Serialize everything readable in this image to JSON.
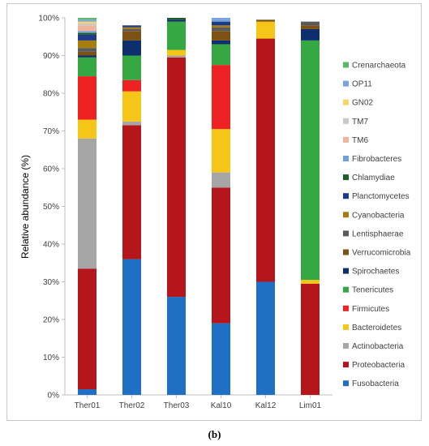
{
  "caption": "(b)",
  "chart_data": {
    "type": "bar",
    "stacked": true,
    "ylabel": "Relative abundance (%)",
    "xlabel": "",
    "ylim": [
      0,
      100
    ],
    "y_ticks": [
      "0%",
      "10%",
      "20%",
      "30%",
      "40%",
      "50%",
      "60%",
      "70%",
      "80%",
      "90%",
      "100%"
    ],
    "grid": false,
    "legend_position": "right",
    "categories": [
      "Ther01",
      "Ther02",
      "Ther03",
      "Kal10",
      "Kal12",
      "Lim01"
    ],
    "series": [
      {
        "name": "Fusobacteria",
        "color": "#1f6fc5",
        "values": [
          1.5,
          36.0,
          26.0,
          19.0,
          30.0,
          0.0
        ]
      },
      {
        "name": "Proteobacteria",
        "color": "#b5161b",
        "values": [
          32.0,
          35.5,
          63.5,
          36.0,
          64.5,
          29.5
        ]
      },
      {
        "name": "Actinobacteria",
        "color": "#a6a6a6",
        "values": [
          34.5,
          1.0,
          0.5,
          4.0,
          0.0,
          0.0
        ]
      },
      {
        "name": "Bacteroidetes",
        "color": "#f5c518",
        "values": [
          5.0,
          8.0,
          1.5,
          11.5,
          4.5,
          1.0
        ]
      },
      {
        "name": "Firmicutes",
        "color": "#ee2222",
        "values": [
          11.5,
          3.0,
          0.0,
          17.0,
          0.0,
          0.0
        ]
      },
      {
        "name": "Tenericutes",
        "color": "#35a843",
        "values": [
          5.0,
          6.5,
          7.5,
          5.5,
          0.0,
          63.5
        ]
      },
      {
        "name": "Spirochaetes",
        "color": "#0d2f6e",
        "values": [
          0.5,
          4.0,
          0.5,
          1.0,
          0.0,
          3.0
        ]
      },
      {
        "name": "Verrucomicrobia",
        "color": "#7b5213",
        "values": [
          1.0,
          2.5,
          0.0,
          2.5,
          0.5,
          1.0
        ]
      },
      {
        "name": "Lentisphaerae",
        "color": "#5a5a5a",
        "values": [
          1.0,
          0.5,
          0.0,
          1.0,
          0.0,
          1.0
        ]
      },
      {
        "name": "Cyanobacteria",
        "color": "#a87d10",
        "values": [
          2.0,
          0.5,
          0.0,
          0.5,
          0.0,
          0.0
        ]
      },
      {
        "name": "Planctomycetes",
        "color": "#1e3a8a",
        "values": [
          1.5,
          0.5,
          0.0,
          1.0,
          0.0,
          0.0
        ]
      },
      {
        "name": "Chlamydiae",
        "color": "#1d5e2a",
        "values": [
          0.5,
          0.0,
          0.5,
          0.0,
          0.0,
          0.0
        ]
      },
      {
        "name": "Fibrobacteres",
        "color": "#6fa0d8",
        "values": [
          0.5,
          0.0,
          0.0,
          0.5,
          0.0,
          0.0
        ]
      },
      {
        "name": "TM6",
        "color": "#f0b49a",
        "values": [
          1.5,
          0.0,
          0.0,
          0.0,
          0.0,
          0.0
        ]
      },
      {
        "name": "TM7",
        "color": "#c9c9c9",
        "values": [
          0.5,
          0.0,
          0.0,
          0.0,
          0.0,
          0.0
        ]
      },
      {
        "name": "GN02",
        "color": "#f7d565",
        "values": [
          0.5,
          0.0,
          0.0,
          0.0,
          0.0,
          0.0
        ]
      },
      {
        "name": "OP11",
        "color": "#7aa2e0",
        "values": [
          0.5,
          0.0,
          0.0,
          0.5,
          0.0,
          0.0
        ]
      },
      {
        "name": "Crenarchaeota",
        "color": "#5cb86a",
        "values": [
          0.5,
          0.0,
          0.0,
          0.0,
          0.0,
          0.0
        ]
      }
    ]
  }
}
